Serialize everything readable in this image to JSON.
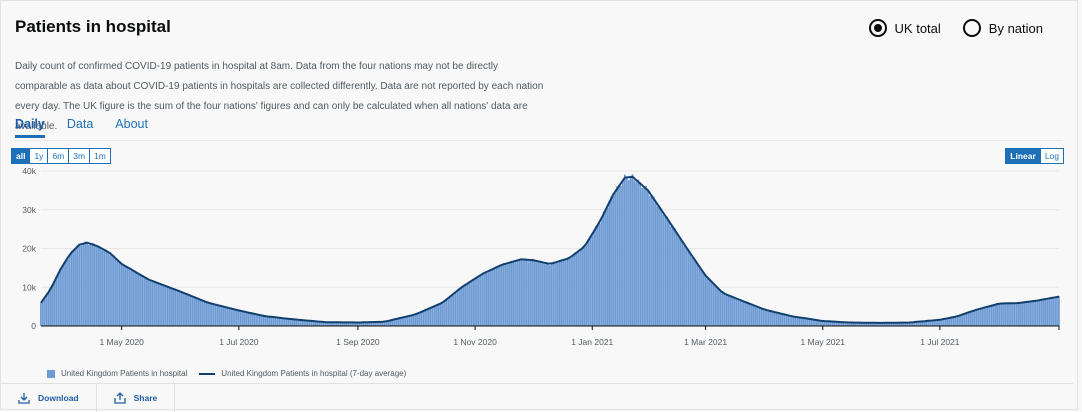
{
  "title": "Patients in hospital",
  "radio": {
    "options": [
      "UK total",
      "By nation"
    ],
    "selected": "UK total"
  },
  "description": "Daily count of confirmed COVID-19 patients in hospital at 8am. Data from the four nations may not be directly comparable as data about COVID-19 patients in hospitals are collected differently. Data are not reported by each nation every day. The UK figure is the sum of the four nations' figures and can only be calculated when all nations' data are available.",
  "tabs": [
    "Daily",
    "Data",
    "About"
  ],
  "active_tab": "Daily",
  "ranges": [
    "all",
    "1y",
    "6m",
    "3m",
    "1m"
  ],
  "active_range": "all",
  "scales": [
    "Linear",
    "Log"
  ],
  "active_scale": "Linear",
  "legend": {
    "bars": "United Kingdom Patients in hospital",
    "line": "United Kingdom Patients in hospital (7-day average)"
  },
  "footer": {
    "download": "Download",
    "share": "Share"
  },
  "colors": {
    "bar": "#6e9bd4",
    "line": "#12406e",
    "accent": "#1d70b8"
  },
  "chart_data": {
    "type": "bar",
    "overlay": "line",
    "y_ticks": [
      "0",
      "10k",
      "20k",
      "30k",
      "40k"
    ],
    "ylim": [
      0,
      40000
    ],
    "x_tick_labels": [
      "1 May 2020",
      "1 Jul 2020",
      "1 Sep 2020",
      "1 Nov 2020",
      "1 Jan 2021",
      "1 Mar 2021",
      "1 May 2021",
      "1 Jul 2021"
    ],
    "x_range": [
      "2020-03-20",
      "2021-09-01"
    ],
    "gridlines": true,
    "series": [
      {
        "name": "United Kingdom Patients in hospital",
        "kind": "bar",
        "points": [
          [
            "2020-03-20",
            6000
          ],
          [
            "2020-03-25",
            9500
          ],
          [
            "2020-03-30",
            14500
          ],
          [
            "2020-04-04",
            18500
          ],
          [
            "2020-04-09",
            21000
          ],
          [
            "2020-04-13",
            21500
          ],
          [
            "2020-04-18",
            20700
          ],
          [
            "2020-04-25",
            18800
          ],
          [
            "2020-05-01",
            16000
          ],
          [
            "2020-05-15",
            12000
          ],
          [
            "2020-06-01",
            8800
          ],
          [
            "2020-06-15",
            6000
          ],
          [
            "2020-07-01",
            4000
          ],
          [
            "2020-07-15",
            2500
          ],
          [
            "2020-08-01",
            1600
          ],
          [
            "2020-08-15",
            1000
          ],
          [
            "2020-09-01",
            900
          ],
          [
            "2020-09-15",
            1100
          ],
          [
            "2020-10-01",
            3000
          ],
          [
            "2020-10-15",
            6000
          ],
          [
            "2020-10-25",
            10000
          ],
          [
            "2020-11-05",
            13500
          ],
          [
            "2020-11-15",
            15800
          ],
          [
            "2020-11-25",
            17200
          ],
          [
            "2020-12-01",
            17000
          ],
          [
            "2020-12-10",
            16000
          ],
          [
            "2020-12-20",
            17500
          ],
          [
            "2020-12-28",
            20500
          ],
          [
            "2021-01-05",
            27000
          ],
          [
            "2021-01-12",
            34000
          ],
          [
            "2021-01-18",
            38300
          ],
          [
            "2021-01-22",
            38500
          ],
          [
            "2021-01-30",
            35000
          ],
          [
            "2021-02-10",
            27000
          ],
          [
            "2021-02-20",
            19500
          ],
          [
            "2021-03-01",
            13000
          ],
          [
            "2021-03-10",
            8500
          ],
          [
            "2021-03-20",
            6500
          ],
          [
            "2021-04-01",
            4200
          ],
          [
            "2021-04-15",
            2500
          ],
          [
            "2021-05-01",
            1300
          ],
          [
            "2021-05-15",
            900
          ],
          [
            "2021-06-01",
            800
          ],
          [
            "2021-06-15",
            900
          ],
          [
            "2021-07-01",
            1600
          ],
          [
            "2021-07-10",
            2500
          ],
          [
            "2021-07-20",
            4200
          ],
          [
            "2021-08-01",
            5800
          ],
          [
            "2021-08-10",
            5900
          ],
          [
            "2021-08-20",
            6500
          ],
          [
            "2021-09-01",
            7600
          ]
        ]
      },
      {
        "name": "United Kingdom Patients in hospital (7-day average)",
        "kind": "line"
      }
    ]
  }
}
